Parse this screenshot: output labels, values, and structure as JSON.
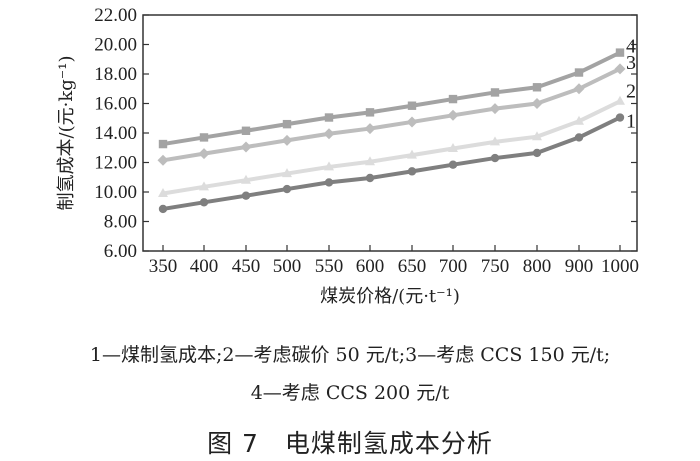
{
  "chart_data": {
    "type": "line",
    "x_tick_labels": [
      "350",
      "400",
      "450",
      "500",
      "550",
      "600",
      "650",
      "700",
      "750",
      "800",
      "900",
      "1000"
    ],
    "y_tick_labels": [
      "6.00",
      "8.00",
      "10.00",
      "12.00",
      "14.00",
      "16.00",
      "18.00",
      "20.00",
      "22.00"
    ],
    "ylim": [
      6,
      22
    ],
    "xlabel": "煤炭价格/(元·t⁻¹)",
    "ylabel": "制氢成本/(元·kg⁻¹)",
    "grid": false,
    "series": [
      {
        "name": "1",
        "color": "#7f7f7f",
        "marker": "circle",
        "values": [
          8.85,
          9.3,
          9.75,
          10.2,
          10.65,
          10.95,
          11.4,
          11.85,
          12.3,
          12.65,
          13.7,
          15.05
        ]
      },
      {
        "name": "2",
        "color": "#dcdcdc",
        "marker": "triangle",
        "values": [
          9.9,
          10.35,
          10.8,
          11.25,
          11.7,
          12.05,
          12.5,
          12.95,
          13.4,
          13.75,
          14.8,
          16.15
        ]
      },
      {
        "name": "3",
        "color": "#bdbdbd",
        "marker": "diamond",
        "values": [
          12.15,
          12.6,
          13.05,
          13.5,
          13.95,
          14.3,
          14.75,
          15.2,
          15.65,
          16.0,
          17.0,
          18.35
        ]
      },
      {
        "name": "4",
        "color": "#a3a3a3",
        "marker": "square",
        "values": [
          13.25,
          13.7,
          14.15,
          14.6,
          15.05,
          15.4,
          15.85,
          16.3,
          16.75,
          17.1,
          18.1,
          19.45
        ]
      }
    ]
  },
  "caption": {
    "line1": "1—煤制氢成本;2—考虑碳价 50 元/t;3—考虑 CCS 150 元/t;",
    "line2": "4—考虑 CCS 200 元/t"
  },
  "figure_title": "图 7　电煤制氢成本分析"
}
